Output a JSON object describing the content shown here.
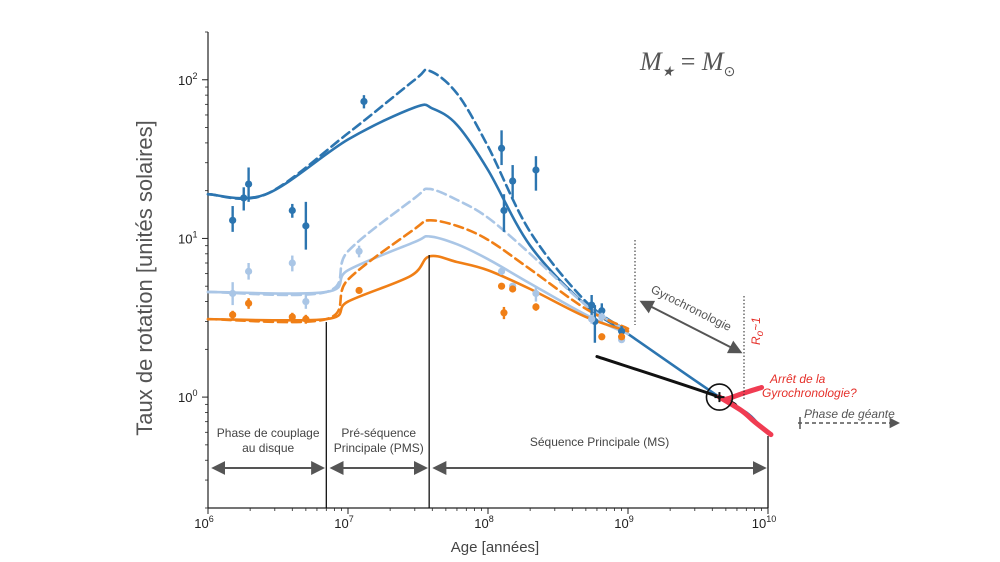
{
  "chart_data": {
    "type": "line",
    "xlabel": "Age [années]",
    "ylabel": "Taux de rotation [unités solaires]",
    "xscale": "log",
    "yscale": "log",
    "xlim": [
      1000000,
      10000000000
    ],
    "ylim": [
      0.2,
      200
    ],
    "x_ticks": [
      {
        "value": 1000000,
        "base": "10",
        "exp": "6"
      },
      {
        "value": 10000000,
        "base": "10",
        "exp": "7"
      },
      {
        "value": 100000000,
        "base": "10",
        "exp": "8"
      },
      {
        "value": 1000000000,
        "base": "10",
        "exp": "9"
      },
      {
        "value": 10000000000,
        "base": "10",
        "exp": "10"
      }
    ],
    "y_ticks": [
      {
        "value": 1,
        "base": "10",
        "exp": "0"
      },
      {
        "value": 10,
        "base": "10",
        "exp": "1"
      },
      {
        "value": 100,
        "base": "10",
        "exp": "2"
      }
    ],
    "formula": {
      "lhs": "M",
      "lhs_sub": "★",
      "eq": " = ",
      "rhs": "M",
      "rhs_sub": "⊙"
    },
    "series": [
      {
        "style": "solid",
        "color": "#2c75b0",
        "x": [
          1000000,
          2600000,
          10000000,
          30000000,
          40000000,
          60000000,
          100000000,
          200000000,
          500000000,
          1000000000,
          4500000000,
          7000000000,
          8500000000
        ],
        "y": [
          19,
          19,
          42,
          67,
          66,
          52,
          27,
          9,
          3.8,
          2.5,
          1.0,
          0.8,
          0.68
        ]
      },
      {
        "style": "dashed",
        "color": "#2c75b0",
        "x": [
          1000000,
          2600000,
          10000000,
          30000000,
          38000000,
          60000000,
          100000000,
          200000000,
          500000000,
          1000000000
        ],
        "y": [
          19,
          19,
          46,
          100,
          114,
          82,
          38,
          11,
          4,
          2.6
        ]
      },
      {
        "style": "solid",
        "color": "#aac6e6",
        "x": [
          1000000,
          7000000,
          10000000,
          30000000,
          38000000,
          60000000,
          100000000,
          200000000,
          500000000,
          1000000000
        ],
        "y": [
          4.6,
          4.6,
          6.3,
          9.5,
          10.3,
          9.2,
          7.4,
          5.2,
          3.3,
          2.5
        ]
      },
      {
        "style": "dashed",
        "color": "#aac6e6",
        "x": [
          1000000,
          7000000,
          10000000,
          30000000,
          38000000,
          60000000,
          100000000,
          200000000,
          500000000,
          1000000000
        ],
        "y": [
          4.6,
          4.6,
          8.3,
          18,
          20.5,
          17.5,
          13.5,
          8,
          3.8,
          2.6
        ]
      },
      {
        "style": "solid",
        "color": "#f07f16",
        "x": [
          1000000,
          7000000,
          10000000,
          28000000,
          38000000,
          60000000,
          100000000,
          200000000,
          500000000,
          1000000000
        ],
        "y": [
          3.1,
          3.1,
          4,
          5.8,
          7.7,
          7.1,
          6.3,
          4.8,
          3.2,
          2.6
        ]
      },
      {
        "style": "dashed",
        "color": "#f07f16",
        "x": [
          1000000,
          7000000,
          10000000,
          30000000,
          38000000,
          60000000,
          100000000,
          200000000,
          500000000,
          1000000000
        ],
        "y": [
          3.1,
          3.1,
          5.5,
          11.5,
          13,
          12,
          9.8,
          6.4,
          3.6,
          2.7
        ]
      },
      {
        "style": "solid",
        "color": "#111111",
        "x": [
          600000000,
          4500000000,
          6000000000
        ],
        "y": [
          1.8,
          1.0,
          0.85
        ]
      },
      {
        "style": "solid",
        "color": "#f03c52",
        "x": [
          4500000000,
          6500000000,
          8000000000,
          10500000000
        ],
        "y": [
          1.0,
          0.82,
          0.7,
          0.58
        ]
      },
      {
        "style": "solid",
        "color": "#f03c52",
        "x": [
          4500000000,
          5000000000,
          6500000000,
          9000000000
        ],
        "y": [
          1.0,
          0.97,
          1.05,
          1.15
        ]
      }
    ],
    "points": [
      {
        "x": 1500000,
        "y": 13,
        "lo": 11,
        "hi": 16,
        "color": "#2c75b0"
      },
      {
        "x": 1800000,
        "y": 18,
        "lo": 15,
        "hi": 21,
        "color": "#2c75b0"
      },
      {
        "x": 1950000,
        "y": 22,
        "lo": 17,
        "hi": 28,
        "color": "#2c75b0"
      },
      {
        "x": 4000000,
        "y": 15,
        "lo": 13.5,
        "hi": 16.5,
        "color": "#2c75b0"
      },
      {
        "x": 5000000,
        "y": 12,
        "lo": 8.5,
        "hi": 17,
        "color": "#2c75b0"
      },
      {
        "x": 13000000,
        "y": 73,
        "lo": 66,
        "hi": 80,
        "color": "#2c75b0"
      },
      {
        "x": 125000000,
        "y": 37,
        "lo": 29,
        "hi": 48,
        "color": "#2c75b0"
      },
      {
        "x": 130000000,
        "y": 15,
        "lo": 11,
        "hi": 19,
        "color": "#2c75b0"
      },
      {
        "x": 150000000,
        "y": 23,
        "lo": 18,
        "hi": 29,
        "color": "#2c75b0"
      },
      {
        "x": 220000000,
        "y": 27,
        "lo": 20,
        "hi": 33,
        "color": "#2c75b0"
      },
      {
        "x": 550000000,
        "y": 3.8,
        "lo": 3.2,
        "hi": 4.4,
        "color": "#2c75b0"
      },
      {
        "x": 580000000,
        "y": 3,
        "lo": 2.2,
        "hi": 3.8,
        "color": "#2c75b0"
      },
      {
        "x": 650000000,
        "y": 3.5,
        "lo": 3.1,
        "hi": 3.9,
        "color": "#2c75b0"
      },
      {
        "x": 900000000,
        "y": 2.6,
        "lo": 2.4,
        "hi": 2.8,
        "color": "#2c75b0"
      },
      {
        "x": 1500000,
        "y": 4.5,
        "lo": 3.8,
        "hi": 5.3,
        "color": "#aac6e6"
      },
      {
        "x": 1950000,
        "y": 6.2,
        "lo": 5.5,
        "hi": 7,
        "color": "#aac6e6"
      },
      {
        "x": 4000000,
        "y": 7,
        "lo": 6.2,
        "hi": 7.8,
        "color": "#aac6e6"
      },
      {
        "x": 5000000,
        "y": 4,
        "lo": 3.6,
        "hi": 4.4,
        "color": "#aac6e6"
      },
      {
        "x": 12000000,
        "y": 8.3,
        "lo": 7.6,
        "hi": 9,
        "color": "#aac6e6"
      },
      {
        "x": 125000000,
        "y": 6.2,
        "lo": 5.9,
        "hi": 6.5,
        "color": "#aac6e6"
      },
      {
        "x": 150000000,
        "y": 5,
        "lo": 4.8,
        "hi": 5.2,
        "color": "#aac6e6"
      },
      {
        "x": 220000000,
        "y": 4.5,
        "lo": 4,
        "hi": 5,
        "color": "#aac6e6"
      },
      {
        "x": 550000000,
        "y": 3.1,
        "lo": 2.9,
        "hi": 3.3,
        "color": "#aac6e6"
      },
      {
        "x": 650000000,
        "y": 3.2,
        "lo": 3,
        "hi": 3.4,
        "color": "#aac6e6"
      },
      {
        "x": 900000000,
        "y": 2.3,
        "lo": 2.2,
        "hi": 2.4,
        "color": "#aac6e6"
      },
      {
        "x": 1500000,
        "y": 3.3,
        "lo": 3.1,
        "hi": 3.5,
        "color": "#f07f16"
      },
      {
        "x": 1950000,
        "y": 3.9,
        "lo": 3.6,
        "hi": 4.2,
        "color": "#f07f16"
      },
      {
        "x": 4000000,
        "y": 3.2,
        "lo": 3,
        "hi": 3.4,
        "color": "#f07f16"
      },
      {
        "x": 5000000,
        "y": 3.1,
        "lo": 2.9,
        "hi": 3.3,
        "color": "#f07f16"
      },
      {
        "x": 12000000,
        "y": 4.7,
        "lo": 4.5,
        "hi": 4.9,
        "color": "#f07f16"
      },
      {
        "x": 125000000,
        "y": 5,
        "lo": 4.8,
        "hi": 5.2,
        "color": "#f07f16"
      },
      {
        "x": 130000000,
        "y": 3.4,
        "lo": 3.1,
        "hi": 3.7,
        "color": "#f07f16"
      },
      {
        "x": 150000000,
        "y": 4.8,
        "lo": 4.6,
        "hi": 5,
        "color": "#f07f16"
      },
      {
        "x": 220000000,
        "y": 3.7,
        "lo": 3.5,
        "hi": 3.9,
        "color": "#f07f16"
      },
      {
        "x": 650000000,
        "y": 2.4,
        "lo": 2.3,
        "hi": 2.5,
        "color": "#f07f16"
      },
      {
        "x": 900000000,
        "y": 2.4,
        "lo": 2.3,
        "hi": 2.5,
        "color": "#f07f16"
      }
    ],
    "phases": [
      {
        "label_lines": [
          "Phase de couplage",
          "au disque"
        ],
        "x_start": 1000000,
        "x_end": 7000000
      },
      {
        "label_lines": [
          "Pré-séquence",
          "Principale (PMS)"
        ],
        "x_start": 7000000,
        "x_end": 38000000
      },
      {
        "label_lines": [
          "Séquence Principale (MS)"
        ],
        "x_start": 38000000,
        "x_end": 10000000000
      }
    ],
    "annotations": {
      "gyrochronology": "Gyrochronologie",
      "rossby": "Ro~1",
      "rossby_base": "R",
      "rossby_sub": "o",
      "rossby_rest": "~1",
      "stop_line1": "Arrêt de la",
      "stop_line2": "Gyrochronologie?",
      "giant": "Phase de géante",
      "sun": {
        "x": 4500000000,
        "y": 1.0
      }
    },
    "colors": {
      "dark_blue": "#2c75b0",
      "light_blue": "#aac6e6",
      "orange": "#f07f16",
      "red": "#e5302a",
      "pink": "#f03c52"
    }
  }
}
